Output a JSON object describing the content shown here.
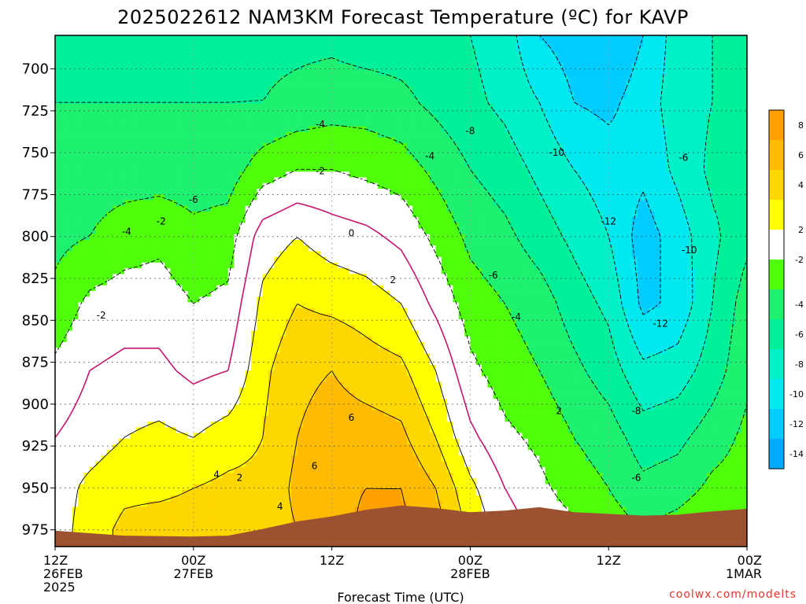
{
  "title": "2025022612 NAM3KM Forecast Temperature (ºC) for KAVP",
  "xlabel": "Forecast Time (UTC)",
  "credit": "coolwx.com/modelts",
  "colors": {
    "ground": "#9c5230",
    "frame": "#000000",
    "grid": "#555555",
    "zero_line": "#c8146e",
    "bins": [
      {
        "lo": -16,
        "hi": -14,
        "color": "#00aaff"
      },
      {
        "lo": -14,
        "hi": -12,
        "color": "#00ccff"
      },
      {
        "lo": -12,
        "hi": -10,
        "color": "#00e8f0"
      },
      {
        "lo": -10,
        "hi": -8,
        "color": "#00f0c8"
      },
      {
        "lo": -8,
        "hi": -6,
        "color": "#00f09a"
      },
      {
        "lo": -6,
        "hi": -4,
        "color": "#1ef070"
      },
      {
        "lo": -4,
        "hi": -2,
        "color": "#50ff0a"
      },
      {
        "lo": -2,
        "hi": 2,
        "color": "#ffffff"
      },
      {
        "lo": 2,
        "hi": 4,
        "color": "#ffff00"
      },
      {
        "lo": 4,
        "hi": 6,
        "color": "#ffd700"
      },
      {
        "lo": 6,
        "hi": 8,
        "color": "#ffbb00"
      },
      {
        "lo": 8,
        "hi": 10,
        "color": "#ff9f00"
      }
    ]
  },
  "chart_data": {
    "type": "heatmap",
    "title": "2025022612 NAM3KM Forecast Temperature (ºC) for KAVP",
    "xlabel": "Forecast Time (UTC)",
    "ylabel": "",
    "x_ticks": [
      {
        "h": 0,
        "l1": "12Z",
        "l2": "26FEB",
        "l3": "2025"
      },
      {
        "h": 12,
        "l1": "00Z",
        "l2": "27FEB",
        "l3": ""
      },
      {
        "h": 24,
        "l1": "12Z",
        "l2": "",
        "l3": ""
      },
      {
        "h": 36,
        "l1": "00Z",
        "l2": "28FEB",
        "l3": ""
      },
      {
        "h": 48,
        "l1": "12Z",
        "l2": "",
        "l3": ""
      },
      {
        "h": 60,
        "l1": "00Z",
        "l2": "1MAR",
        "l3": ""
      }
    ],
    "xlim": [
      0,
      60
    ],
    "y_ticks": [
      700,
      725,
      750,
      775,
      800,
      825,
      850,
      875,
      900,
      925,
      950,
      975
    ],
    "ylim": [
      680,
      985
    ],
    "colorbar_ticks": [
      "-14",
      "-12",
      "-10",
      "-8",
      "-6",
      "-4",
      "-2",
      "2",
      "4",
      "6",
      "8"
    ],
    "contour_interval": 2,
    "surface": [
      [
        0,
        975.5
      ],
      [
        6,
        978.5
      ],
      [
        12,
        979
      ],
      [
        15,
        978.5
      ],
      [
        18,
        974.5
      ],
      [
        21,
        970
      ],
      [
        24,
        967
      ],
      [
        27,
        963
      ],
      [
        30,
        960.5
      ],
      [
        33,
        962
      ],
      [
        36,
        964.5
      ],
      [
        39,
        963.5
      ],
      [
        42,
        961.5
      ],
      [
        45,
        964.5
      ],
      [
        48,
        965.5
      ],
      [
        51,
        966.5
      ],
      [
        54,
        966
      ],
      [
        57,
        964
      ],
      [
        60,
        962.5
      ]
    ],
    "columns": [
      {
        "h": 0,
        "levels": [
          [
            680,
            -7
          ],
          [
            720,
            -6
          ],
          [
            760,
            -5
          ],
          [
            800,
            -4.5
          ],
          [
            840,
            -3.5
          ],
          [
            880,
            -1.5
          ],
          [
            920,
            0
          ],
          [
            945,
            1
          ],
          [
            975,
            1
          ]
        ]
      },
      {
        "h": 3,
        "levels": [
          [
            680,
            -7
          ],
          [
            720,
            -6
          ],
          [
            760,
            -5
          ],
          [
            800,
            -4
          ],
          [
            840,
            -1.5
          ],
          [
            880,
            0
          ],
          [
            920,
            1
          ],
          [
            950,
            2.5
          ],
          [
            975,
            3
          ]
        ]
      },
      {
        "h": 6,
        "levels": [
          [
            680,
            -7
          ],
          [
            720,
            -6
          ],
          [
            760,
            -5
          ],
          [
            800,
            -3
          ],
          [
            840,
            -1
          ],
          [
            880,
            0.5
          ],
          [
            920,
            2
          ],
          [
            950,
            3.5
          ],
          [
            975,
            4.5
          ]
        ]
      },
      {
        "h": 9,
        "levels": [
          [
            680,
            -7
          ],
          [
            720,
            -6
          ],
          [
            760,
            -5
          ],
          [
            800,
            -2.5
          ],
          [
            840,
            -1
          ],
          [
            880,
            0.5
          ],
          [
            920,
            2.5
          ],
          [
            950,
            3.5
          ],
          [
            975,
            5
          ]
        ]
      },
      {
        "h": 12,
        "levels": [
          [
            680,
            -7
          ],
          [
            720,
            -6
          ],
          [
            760,
            -5
          ],
          [
            800,
            -3.5
          ],
          [
            840,
            -2
          ],
          [
            880,
            -0.5
          ],
          [
            920,
            2
          ],
          [
            950,
            4
          ],
          [
            975,
            5
          ]
        ]
      },
      {
        "h": 15,
        "levels": [
          [
            680,
            -7
          ],
          [
            720,
            -6
          ],
          [
            760,
            -5
          ],
          [
            800,
            -3
          ],
          [
            840,
            -1.5
          ],
          [
            880,
            0
          ],
          [
            920,
            3
          ],
          [
            950,
            4.5
          ],
          [
            975,
            5.5
          ]
        ]
      },
      {
        "h": 18,
        "levels": [
          [
            680,
            -6.5
          ],
          [
            720,
            -6
          ],
          [
            760,
            -3
          ],
          [
            800,
            1
          ],
          [
            840,
            2.5
          ],
          [
            880,
            3.5
          ],
          [
            920,
            4
          ],
          [
            950,
            4.5
          ],
          [
            975,
            5
          ]
        ]
      },
      {
        "h": 21,
        "levels": [
          [
            680,
            -6.5
          ],
          [
            720,
            -5.5
          ],
          [
            760,
            -2
          ],
          [
            800,
            2
          ],
          [
            840,
            4
          ],
          [
            880,
            5.5
          ],
          [
            920,
            6
          ],
          [
            950,
            6.5
          ],
          [
            975,
            6
          ]
        ]
      },
      {
        "h": 24,
        "levels": [
          [
            680,
            -6.5
          ],
          [
            720,
            -5
          ],
          [
            760,
            -2
          ],
          [
            800,
            1
          ],
          [
            840,
            3.5
          ],
          [
            880,
            6
          ],
          [
            920,
            7
          ],
          [
            950,
            7.5
          ],
          [
            975,
            7
          ]
        ]
      },
      {
        "h": 27,
        "levels": [
          [
            680,
            -7
          ],
          [
            720,
            -5
          ],
          [
            760,
            -2.5
          ],
          [
            800,
            0.5
          ],
          [
            840,
            3
          ],
          [
            880,
            5
          ],
          [
            920,
            7
          ],
          [
            950,
            8
          ],
          [
            975,
            8.5
          ]
        ]
      },
      {
        "h": 30,
        "levels": [
          [
            680,
            -7
          ],
          [
            720,
            -5.5
          ],
          [
            760,
            -3
          ],
          [
            800,
            -0.5
          ],
          [
            840,
            2
          ],
          [
            880,
            4.5
          ],
          [
            920,
            6.5
          ],
          [
            950,
            8
          ],
          [
            975,
            8.5
          ]
        ]
      },
      {
        "h": 33,
        "levels": [
          [
            680,
            -7
          ],
          [
            720,
            -6.5
          ],
          [
            760,
            -4.5
          ],
          [
            800,
            -2.5
          ],
          [
            840,
            -0.5
          ],
          [
            880,
            2
          ],
          [
            920,
            4
          ],
          [
            950,
            6
          ],
          [
            975,
            7
          ]
        ]
      },
      {
        "h": 36,
        "levels": [
          [
            680,
            -8
          ],
          [
            720,
            -7.5
          ],
          [
            760,
            -6
          ],
          [
            800,
            -4.5
          ],
          [
            840,
            -3
          ],
          [
            880,
            -1.5
          ],
          [
            920,
            0.5
          ],
          [
            950,
            2.5
          ],
          [
            975,
            3.5
          ]
        ]
      },
      {
        "h": 39,
        "levels": [
          [
            680,
            -9
          ],
          [
            720,
            -8.5
          ],
          [
            760,
            -7
          ],
          [
            800,
            -5.5
          ],
          [
            840,
            -4
          ],
          [
            880,
            -3
          ],
          [
            920,
            -1.5
          ],
          [
            950,
            0
          ],
          [
            975,
            1
          ]
        ]
      },
      {
        "h": 42,
        "levels": [
          [
            680,
            -12
          ],
          [
            720,
            -10
          ],
          [
            760,
            -8.5
          ],
          [
            800,
            -7
          ],
          [
            840,
            -5
          ],
          [
            880,
            -4
          ],
          [
            920,
            -2.5
          ],
          [
            950,
            -1.5
          ],
          [
            975,
            -0.5
          ]
        ]
      },
      {
        "h": 45,
        "levels": [
          [
            680,
            -13
          ],
          [
            720,
            -12
          ],
          [
            760,
            -10
          ],
          [
            800,
            -8.5
          ],
          [
            840,
            -7
          ],
          [
            880,
            -5.5
          ],
          [
            920,
            -4
          ],
          [
            950,
            -3
          ],
          [
            975,
            -1.5
          ]
        ]
      },
      {
        "h": 48,
        "levels": [
          [
            680,
            -14
          ],
          [
            720,
            -12.5
          ],
          [
            760,
            -11
          ],
          [
            800,
            -10
          ],
          [
            840,
            -8.5
          ],
          [
            880,
            -7
          ],
          [
            920,
            -5
          ],
          [
            950,
            -4
          ],
          [
            975,
            -3
          ]
        ]
      },
      {
        "h": 51,
        "levels": [
          [
            680,
            -12
          ],
          [
            720,
            -11
          ],
          [
            760,
            -11.5
          ],
          [
            800,
            -13
          ],
          [
            840,
            -12.5
          ],
          [
            880,
            -9.5
          ],
          [
            920,
            -7
          ],
          [
            950,
            -5.5
          ],
          [
            975,
            -4
          ]
        ]
      },
      {
        "h": 54,
        "levels": [
          [
            680,
            -9
          ],
          [
            720,
            -9
          ],
          [
            760,
            -9.5
          ],
          [
            800,
            -11
          ],
          [
            840,
            -11.5
          ],
          [
            880,
            -9
          ],
          [
            920,
            -6.5
          ],
          [
            950,
            -5
          ],
          [
            975,
            -3
          ]
        ]
      },
      {
        "h": 57,
        "levels": [
          [
            680,
            -8
          ],
          [
            720,
            -8
          ],
          [
            760,
            -7.5
          ],
          [
            800,
            -8.5
          ],
          [
            840,
            -8
          ],
          [
            880,
            -7
          ],
          [
            920,
            -5
          ],
          [
            950,
            -3.5
          ],
          [
            975,
            -2
          ]
        ]
      },
      {
        "h": 60,
        "levels": [
          [
            680,
            -7
          ],
          [
            720,
            -7
          ],
          [
            760,
            -7
          ],
          [
            800,
            -6.5
          ],
          [
            840,
            -5
          ],
          [
            880,
            -4.5
          ],
          [
            920,
            -3.5
          ],
          [
            950,
            -3
          ],
          [
            975,
            -2
          ]
        ]
      }
    ],
    "contour_labels": [
      {
        "text": "-4",
        "h": 23.0,
        "p": 733
      },
      {
        "text": "-8",
        "h": 36.0,
        "p": 737
      },
      {
        "text": "-10",
        "h": 43.5,
        "p": 750
      },
      {
        "text": "-6",
        "h": 54.5,
        "p": 753
      },
      {
        "text": "-2",
        "h": 23.0,
        "p": 761
      },
      {
        "text": "-4",
        "h": 32.5,
        "p": 752
      },
      {
        "text": "-6",
        "h": 12.0,
        "p": 778
      },
      {
        "text": "-12",
        "h": 48.0,
        "p": 791
      },
      {
        "text": "-4",
        "h": 6.2,
        "p": 797
      },
      {
        "text": "-2",
        "h": 9.2,
        "p": 791
      },
      {
        "text": "0",
        "h": 25.7,
        "p": 798
      },
      {
        "text": "-10",
        "h": 55.0,
        "p": 808
      },
      {
        "text": "2",
        "h": 29.3,
        "p": 826
      },
      {
        "text": "-6",
        "h": 38.0,
        "p": 823
      },
      {
        "text": "-2",
        "h": 4.0,
        "p": 847
      },
      {
        "text": "-4",
        "h": 40.0,
        "p": 848
      },
      {
        "text": "-12",
        "h": 52.5,
        "p": 852
      },
      {
        "text": "6",
        "h": 25.7,
        "p": 908
      },
      {
        "text": "2",
        "h": 43.7,
        "p": 904
      },
      {
        "text": "-8",
        "h": 50.4,
        "p": 904
      },
      {
        "text": "6",
        "h": 22.5,
        "p": 937
      },
      {
        "text": "4",
        "h": 14.0,
        "p": 942
      },
      {
        "text": "2",
        "h": 16.0,
        "p": 944
      },
      {
        "text": "4",
        "h": 19.5,
        "p": 961
      },
      {
        "text": "-6",
        "h": 50.4,
        "p": 944
      }
    ]
  }
}
